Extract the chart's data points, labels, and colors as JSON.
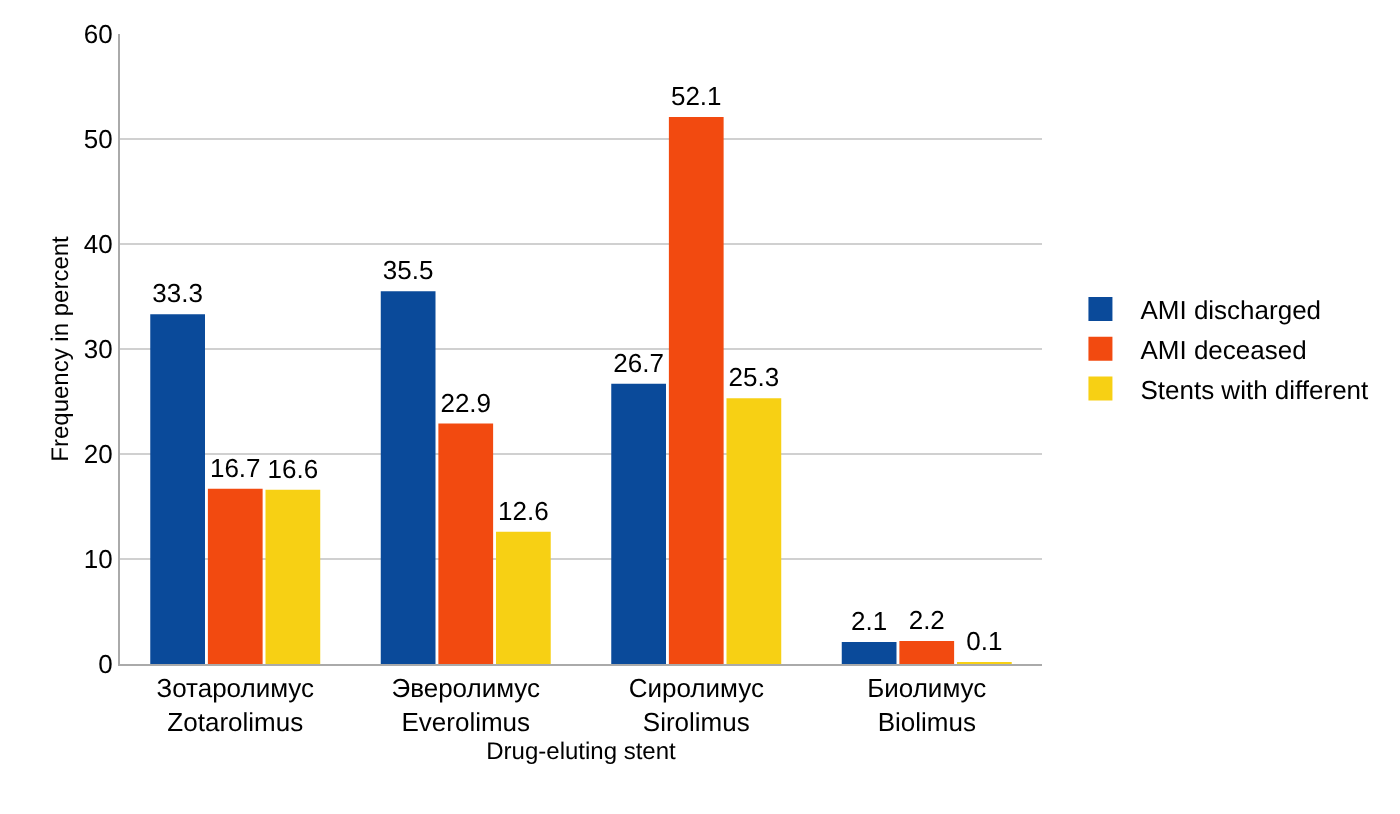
{
  "chart_data": {
    "type": "bar",
    "xlabel": "Drug-eluting stent",
    "ylabel": "Frequency in percent",
    "categories": [
      "Зотаролимус\nZotarolimus",
      "Эверолимус\nEverolimus",
      "Сиролимус\nSirolimus",
      "Биолимус\nBiolimus"
    ],
    "series": [
      {
        "name": "AMI discharged",
        "color": "#0a4a9a",
        "values": [
          33.3,
          35.5,
          26.7,
          2.1
        ]
      },
      {
        "name": "AMI deceased",
        "color": "#f24a10",
        "values": [
          16.7,
          22.9,
          52.1,
          2.2
        ]
      },
      {
        "name": "Stents with different",
        "color": "#f7d014",
        "values": [
          16.6,
          12.6,
          25.3,
          0.1
        ]
      }
    ],
    "ylim": [
      0,
      60
    ],
    "yticks": [
      0,
      10,
      20,
      30,
      40,
      50,
      60
    ],
    "grid": "y",
    "legend": "right",
    "data_labels": true
  }
}
